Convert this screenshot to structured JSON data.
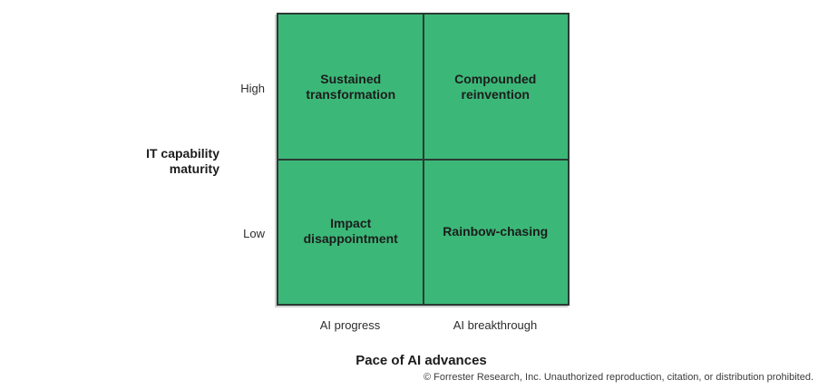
{
  "colors": {
    "quadrant_fill": "#3bb878",
    "grid_line": "#2b3a33"
  },
  "matrix": {
    "quadrants": {
      "top_left": {
        "label": "Sustained\ntransformation"
      },
      "top_right": {
        "label": "Compounded\nreinvention"
      },
      "bottom_left": {
        "label": "Impact\ndisappointment"
      },
      "bottom_right": {
        "label": "Rainbow-chasing"
      }
    }
  },
  "y_axis": {
    "title": "IT capability\nmaturity",
    "high_label": "High",
    "low_label": "Low"
  },
  "x_axis": {
    "title": "Pace of AI advances",
    "left_label": "AI progress",
    "right_label": "AI breakthrough"
  },
  "footer": {
    "copyright": "© Forrester Research, Inc. Unauthorized reproduction, citation, or distribution prohibited."
  }
}
